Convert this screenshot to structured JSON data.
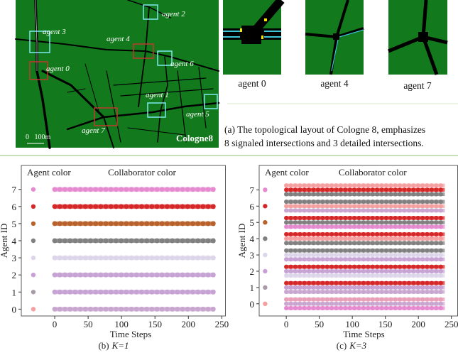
{
  "map": {
    "name": "Cologne8",
    "scale": "0   100m",
    "agents": [
      "agent 0",
      "agent 1",
      "agent 2",
      "agent 3",
      "agent 4",
      "agent 5",
      "agent 6",
      "agent 7"
    ]
  },
  "details": [
    "agent 0",
    "agent 4",
    "agent 7"
  ],
  "caption_a": [
    "(a) The topological layout of Cologne 8, emphasizes",
    "8 signaled intersections and 3 detailed intersections."
  ],
  "figures": [
    {
      "label": "(b)",
      "k_label": "K=1",
      "x_label": "Time Steps",
      "y_label": "Agent ID",
      "agent_color_label": "Agent color",
      "collab_label": "Collaborator color",
      "xlim": [
        -50,
        256
      ],
      "ylim": [
        -0.4,
        8.4
      ],
      "xticks": [
        0,
        50,
        100,
        150,
        200,
        250
      ],
      "yticks": [
        0,
        1,
        2,
        3,
        4,
        5,
        6,
        7
      ],
      "agent_x": -32,
      "time_range": [
        0,
        240
      ],
      "rows": [
        {
          "agent": 0,
          "agent_color": "#f4a0a0",
          "bands": [
            "#c9a6cf"
          ]
        },
        {
          "agent": 1,
          "agent_color": "#a89aa8",
          "bands": [
            "#c7a2d4"
          ]
        },
        {
          "agent": 2,
          "agent_color": "#c9a0d6",
          "bands": [
            "#c7a2d4"
          ]
        },
        {
          "agent": 3,
          "agent_color": "#ddd6ea",
          "bands": [
            "#ddd6ea"
          ]
        },
        {
          "agent": 4,
          "agent_color": "#808080",
          "bands": [
            "#808080"
          ]
        },
        {
          "agent": 5,
          "agent_color": "#b8612a",
          "bands": [
            "#b8612a"
          ]
        },
        {
          "agent": 6,
          "agent_color": "#d62728",
          "bands": [
            "#d62728"
          ]
        },
        {
          "agent": 7,
          "agent_color": "#e58ad0",
          "bands": [
            "#e58ad0"
          ]
        }
      ]
    },
    {
      "label": "(c)",
      "k_label": "K=3",
      "x_label": "Time Steps",
      "y_label": "Agent ID",
      "agent_color_label": "Agent color",
      "collab_label": "Collaborator color",
      "xlim": [
        -41,
        260
      ],
      "ylim": [
        -0.75,
        8.5
      ],
      "xticks": [
        0,
        50,
        100,
        150,
        200,
        250
      ],
      "yticks": [
        0,
        1,
        2,
        3,
        4,
        5,
        6,
        7
      ],
      "agent_x": -32,
      "time_range": [
        0,
        240
      ],
      "rows": [
        {
          "agent": 0,
          "agent_color": "#f4a0a0",
          "bands": [
            "#e8a0b8",
            "#c9a6cf",
            "#e58ad0"
          ]
        },
        {
          "agent": 1,
          "agent_color": "#a89aa8",
          "bands": [
            "#d62728",
            "#c7a2d4",
            "#c9a6cf"
          ]
        },
        {
          "agent": 2,
          "agent_color": "#c9a0d6",
          "bands": [
            "#d62728",
            "#c7a2d4",
            "#ddd6ea"
          ]
        },
        {
          "agent": 3,
          "agent_color": "#ddd6ea",
          "bands": [
            "#808080",
            "#ddd6ea",
            "#c7a2d4"
          ]
        },
        {
          "agent": 4,
          "agent_color": "#808080",
          "bands": [
            "#d62728",
            "#f4a0a0",
            "#808080"
          ]
        },
        {
          "agent": 5,
          "agent_color": "#b8612a",
          "bands": [
            "#d62728",
            "#808080",
            "#e58ad0"
          ]
        },
        {
          "agent": 6,
          "agent_color": "#d62728",
          "bands": [
            "#808080",
            "#f4a0a0",
            "#c9a6cf"
          ]
        },
        {
          "agent": 7,
          "agent_color": "#e58ad0",
          "bands": [
            "#f4a0a0",
            "#d62728",
            "#808080"
          ]
        }
      ]
    }
  ]
}
